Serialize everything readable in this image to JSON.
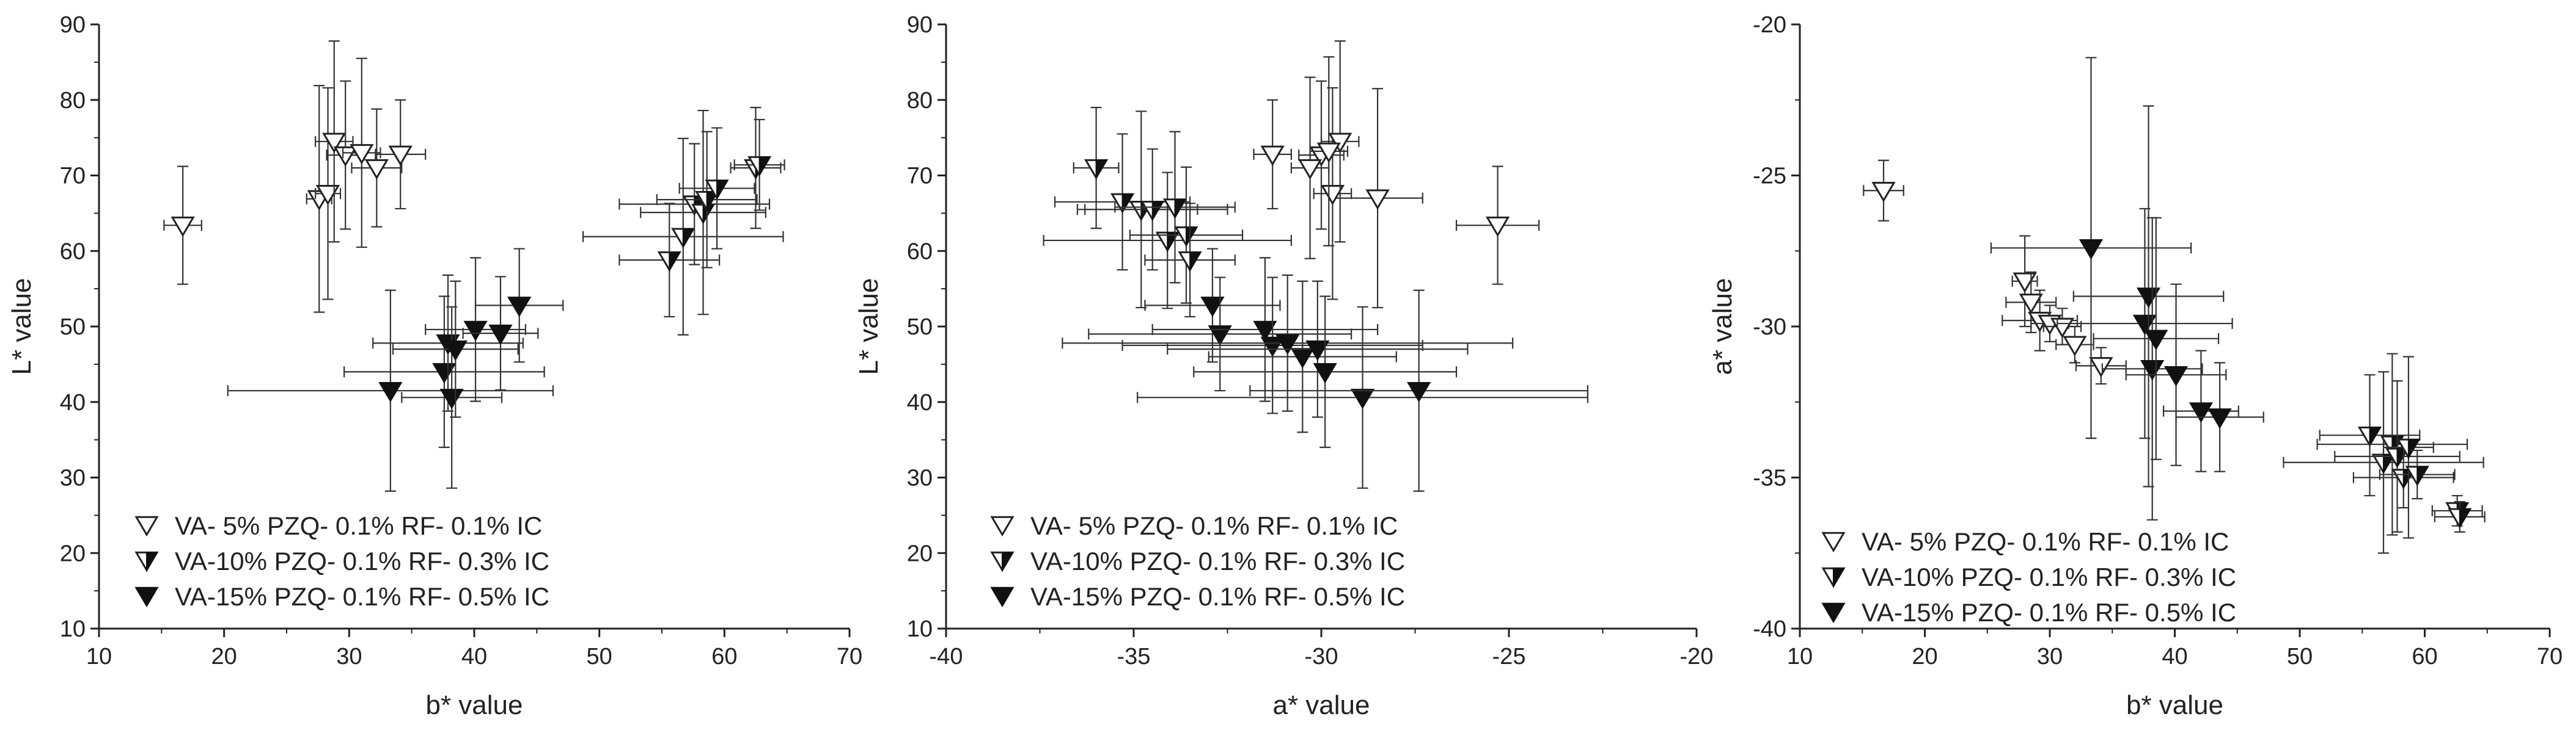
{
  "chart_data": [
    {
      "type": "scatter",
      "xlabel": "b* value",
      "ylabel": "L* value",
      "xlim": [
        10,
        70
      ],
      "ylim": [
        10,
        90
      ],
      "xticks": [
        "10",
        "20",
        "30",
        "40",
        "50",
        "60",
        "70"
      ],
      "yticks": [
        "10",
        "20",
        "30",
        "40",
        "50",
        "60",
        "70",
        "80",
        "90"
      ],
      "legend": [
        {
          "label": "VA-  5% PZQ- 0.1% RF- 0.1% IC",
          "marker": "open-triangle-down"
        },
        {
          "label": "VA-10% PZQ- 0.1% RF- 0.3% IC",
          "marker": "half-triangle-down"
        },
        {
          "label": "VA-15% PZQ- 0.1% RF- 0.5% IC",
          "marker": "filled-triangle-down"
        }
      ],
      "series": [
        {
          "name": "VA-  5% PZQ- 0.1% RF- 0.1% IC",
          "points": [
            {
              "x": 16.7,
              "y": 63.4,
              "xerr": 1.5,
              "yerr": 7.8
            },
            {
              "x": 27.6,
              "y": 66.9,
              "xerr": 1,
              "yerr": 15
            },
            {
              "x": 28.3,
              "y": 67.6,
              "xerr": 1,
              "yerr": 14
            },
            {
              "x": 28.8,
              "y": 74.5,
              "xerr": 1.5,
              "yerr": 13.3
            },
            {
              "x": 29.7,
              "y": 72.7,
              "xerr": 1.5,
              "yerr": 9.8
            },
            {
              "x": 31.0,
              "y": 73.0,
              "xerr": 1.5,
              "yerr": 12.5
            },
            {
              "x": 32.2,
              "y": 71.0,
              "xerr": 2,
              "yerr": 7.8
            },
            {
              "x": 34.1,
              "y": 72.8,
              "xerr": 2,
              "yerr": 7.2
            }
          ]
        },
        {
          "name": "VA-10% PZQ- 0.1% RF- 0.3% IC",
          "points": [
            {
              "x": 55.6,
              "y": 58.8,
              "xerr": 4,
              "yerr": 7.5
            },
            {
              "x": 56.7,
              "y": 61.9,
              "xerr": 8,
              "yerr": 13
            },
            {
              "x": 57.6,
              "y": 66.2,
              "xerr": 6,
              "yerr": 8
            },
            {
              "x": 58.3,
              "y": 65.1,
              "xerr": 5,
              "yerr": 13.5
            },
            {
              "x": 58.6,
              "y": 66.8,
              "xerr": 4,
              "yerr": 9
            },
            {
              "x": 59.4,
              "y": 68.3,
              "xerr": 3,
              "yerr": 8
            },
            {
              "x": 62.5,
              "y": 71.0,
              "xerr": 2,
              "yerr": 8
            },
            {
              "x": 62.8,
              "y": 71.4,
              "xerr": 2,
              "yerr": 6
            }
          ]
        },
        {
          "name": "VA-15% PZQ- 0.1% RF- 0.5% IC",
          "points": [
            {
              "x": 33.3,
              "y": 41.5,
              "xerr": 13,
              "yerr": 13.3
            },
            {
              "x": 37.6,
              "y": 44.0,
              "xerr": 8,
              "yerr": 10
            },
            {
              "x": 37.9,
              "y": 47.8,
              "xerr": 6,
              "yerr": 9
            },
            {
              "x": 38.2,
              "y": 40.6,
              "xerr": 4,
              "yerr": 12
            },
            {
              "x": 38.5,
              "y": 47.0,
              "xerr": 5,
              "yerr": 9
            },
            {
              "x": 40.1,
              "y": 49.6,
              "xerr": 4,
              "yerr": 9.5
            },
            {
              "x": 42.1,
              "y": 49.1,
              "xerr": 3,
              "yerr": 7.5
            },
            {
              "x": 43.6,
              "y": 52.8,
              "xerr": 3.5,
              "yerr": 7.5
            }
          ]
        }
      ]
    },
    {
      "type": "scatter",
      "xlabel": "a* value",
      "ylabel": "L* value",
      "xlim": [
        -40,
        -20
      ],
      "ylim": [
        10,
        90
      ],
      "xticks": [
        "-40",
        "-35",
        "-30",
        "-25",
        "-20"
      ],
      "yticks": [
        "10",
        "20",
        "30",
        "40",
        "50",
        "60",
        "70",
        "80",
        "90"
      ],
      "legend": [
        {
          "label": "VA-  5% PZQ- 0.1% RF- 0.1% IC",
          "marker": "open-triangle-down"
        },
        {
          "label": "VA-10% PZQ- 0.1% RF- 0.3% IC",
          "marker": "half-triangle-down"
        },
        {
          "label": "VA-15% PZQ- 0.1% RF- 0.5% IC",
          "marker": "filled-triangle-down"
        }
      ],
      "series": [
        {
          "name": "VA-  5% PZQ- 0.1% RF- 0.1% IC",
          "points": [
            {
              "x": -25.3,
              "y": 63.4,
              "xerr": 1.1,
              "yerr": 7.8
            },
            {
              "x": -28.5,
              "y": 67.0,
              "xerr": 1.2,
              "yerr": 14.5
            },
            {
              "x": -29.7,
              "y": 67.6,
              "xerr": 0.5,
              "yerr": 14
            },
            {
              "x": -29.5,
              "y": 74.5,
              "xerr": 0.5,
              "yerr": 13.3
            },
            {
              "x": -30.0,
              "y": 72.7,
              "xerr": 0.6,
              "yerr": 9.8
            },
            {
              "x": -30.3,
              "y": 71.0,
              "xerr": 0.5,
              "yerr": 12
            },
            {
              "x": -29.8,
              "y": 73.2,
              "xerr": 0.5,
              "yerr": 12.5
            },
            {
              "x": -31.3,
              "y": 72.8,
              "xerr": 0.5,
              "yerr": 7.2
            }
          ]
        },
        {
          "name": "VA-10% PZQ- 0.1% RF- 0.3% IC",
          "points": [
            {
              "x": -36.0,
              "y": 71.0,
              "xerr": 0.6,
              "yerr": 8
            },
            {
              "x": -35.3,
              "y": 66.5,
              "xerr": 1.8,
              "yerr": 9
            },
            {
              "x": -34.8,
              "y": 65.5,
              "xerr": 1.5,
              "yerr": 13
            },
            {
              "x": -34.5,
              "y": 65.5,
              "xerr": 2,
              "yerr": 8
            },
            {
              "x": -34.1,
              "y": 61.4,
              "xerr": 3.3,
              "yerr": 9
            },
            {
              "x": -33.9,
              "y": 65.8,
              "xerr": 1.6,
              "yerr": 10
            },
            {
              "x": -33.6,
              "y": 62.1,
              "xerr": 1.5,
              "yerr": 9
            },
            {
              "x": -33.5,
              "y": 58.8,
              "xerr": 1.2,
              "yerr": 7.5
            }
          ]
        },
        {
          "name": "VA-15% PZQ- 0.1% RF- 0.5% IC",
          "points": [
            {
              "x": -32.9,
              "y": 52.8,
              "xerr": 1.8,
              "yerr": 7.5
            },
            {
              "x": -32.7,
              "y": 49.0,
              "xerr": 3.5,
              "yerr": 7.5
            },
            {
              "x": -31.5,
              "y": 49.6,
              "xerr": 3,
              "yerr": 9.5
            },
            {
              "x": -31.3,
              "y": 47.5,
              "xerr": 4,
              "yerr": 9
            },
            {
              "x": -30.9,
              "y": 47.8,
              "xerr": 6,
              "yerr": 9
            },
            {
              "x": -30.5,
              "y": 46.0,
              "xerr": 2.5,
              "yerr": 10
            },
            {
              "x": -30.1,
              "y": 47.0,
              "xerr": 4,
              "yerr": 9
            },
            {
              "x": -29.9,
              "y": 44.0,
              "xerr": 3.5,
              "yerr": 10
            },
            {
              "x": -28.9,
              "y": 40.6,
              "xerr": 6,
              "yerr": 12
            },
            {
              "x": -27.4,
              "y": 41.5,
              "xerr": 4.5,
              "yerr": 13.3
            }
          ]
        }
      ]
    },
    {
      "type": "scatter",
      "xlabel": "b* value",
      "ylabel": "a* value",
      "xlim": [
        10,
        70
      ],
      "ylim": [
        -40,
        -20
      ],
      "xticks": [
        "10",
        "20",
        "30",
        "40",
        "50",
        "60",
        "70"
      ],
      "yticks": [
        "-40",
        "-35",
        "-30",
        "-25",
        "-20"
      ],
      "legend": [
        {
          "label": "VA-  5% PZQ- 0.1% RF- 0.1% IC",
          "marker": "open-triangle-down"
        },
        {
          "label": "VA-10% PZQ- 0.1% RF- 0.3% IC",
          "marker": "half-triangle-down"
        },
        {
          "label": "VA-15% PZQ- 0.1% RF- 0.5% IC",
          "marker": "filled-triangle-down"
        }
      ],
      "series": [
        {
          "name": "VA-  5% PZQ- 0.1% RF- 0.1% IC",
          "points": [
            {
              "x": 16.7,
              "y": -25.5,
              "xerr": 1.6,
              "yerr": 1
            },
            {
              "x": 28.0,
              "y": -28.5,
              "xerr": 1,
              "yerr": 1.5
            },
            {
              "x": 28.5,
              "y": -29.2,
              "xerr": 2,
              "yerr": 1
            },
            {
              "x": 29.2,
              "y": -29.8,
              "xerr": 3,
              "yerr": 1
            },
            {
              "x": 30.0,
              "y": -29.9,
              "xerr": 1.5,
              "yerr": 0.6
            },
            {
              "x": 31.0,
              "y": -30.0,
              "xerr": 1.5,
              "yerr": 0.6
            },
            {
              "x": 32.0,
              "y": -30.6,
              "xerr": 1.5,
              "yerr": 0.6
            },
            {
              "x": 34.1,
              "y": -31.3,
              "xerr": 2,
              "yerr": 0.6
            }
          ]
        },
        {
          "name": "VA-10% PZQ- 0.1% RF- 0.3% IC",
          "points": [
            {
              "x": 55.6,
              "y": -33.6,
              "xerr": 4,
              "yerr": 2
            },
            {
              "x": 56.7,
              "y": -34.5,
              "xerr": 8,
              "yerr": 3
            },
            {
              "x": 57.4,
              "y": -33.9,
              "xerr": 6,
              "yerr": 3
            },
            {
              "x": 57.8,
              "y": -34.3,
              "xerr": 5,
              "yerr": 2.5
            },
            {
              "x": 58.3,
              "y": -35.0,
              "xerr": 4,
              "yerr": 1
            },
            {
              "x": 58.7,
              "y": -34.0,
              "xerr": 2,
              "yerr": 3
            },
            {
              "x": 59.4,
              "y": -34.9,
              "xerr": 3,
              "yerr": 0.8
            },
            {
              "x": 62.6,
              "y": -36.1,
              "xerr": 2,
              "yerr": 0.5
            },
            {
              "x": 62.8,
              "y": -36.3,
              "xerr": 2,
              "yerr": 0.5
            }
          ]
        },
        {
          "name": "VA-15% PZQ- 0.1% RF- 0.5% IC",
          "points": [
            {
              "x": 33.3,
              "y": -27.4,
              "xerr": 8,
              "yerr": 6.3
            },
            {
              "x": 37.6,
              "y": -29.9,
              "xerr": 7,
              "yerr": 3.8
            },
            {
              "x": 37.9,
              "y": -29.0,
              "xerr": 6,
              "yerr": 6.3
            },
            {
              "x": 38.2,
              "y": -31.4,
              "xerr": 4,
              "yerr": 5
            },
            {
              "x": 38.5,
              "y": -30.4,
              "xerr": 5,
              "yerr": 4
            },
            {
              "x": 40.1,
              "y": -31.6,
              "xerr": 4,
              "yerr": 3
            },
            {
              "x": 42.1,
              "y": -32.8,
              "xerr": 3,
              "yerr": 2
            },
            {
              "x": 43.6,
              "y": -33.0,
              "xerr": 3.5,
              "yerr": 1.8
            }
          ]
        }
      ]
    }
  ]
}
